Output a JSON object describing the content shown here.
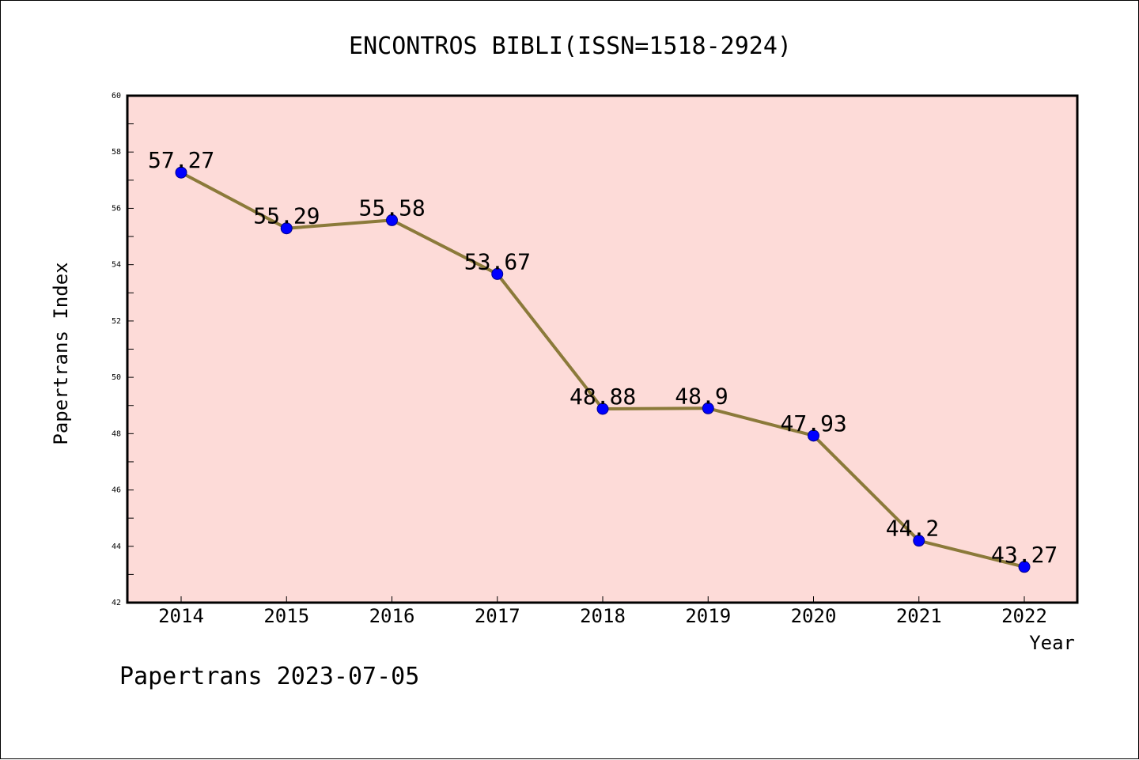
{
  "chart_data": {
    "type": "line",
    "title": "ENCONTROS BIBLI(ISSN=1518-2924)",
    "xlabel": "Year",
    "ylabel": "Papertrans Index",
    "categories": [
      "2014",
      "2015",
      "2016",
      "2017",
      "2018",
      "2019",
      "2020",
      "2021",
      "2022"
    ],
    "values": [
      57.27,
      55.29,
      55.58,
      53.67,
      48.88,
      48.9,
      47.93,
      44.2,
      43.27
    ],
    "data_labels": [
      "57.27",
      "55.29",
      "55.58",
      "53.67",
      "48.88",
      "48.9",
      "47.93",
      "44.2",
      "43.27"
    ],
    "ylim": [
      42,
      60
    ],
    "yticks": [
      "42",
      "44",
      "46",
      "48",
      "50",
      "52",
      "54",
      "56",
      "58",
      "60"
    ],
    "grid": false,
    "colors": {
      "plot_background": "#fddbd8",
      "line": "#8b7a3a",
      "marker": "#0000ff"
    }
  },
  "footer": {
    "text": "Papertrans 2023-07-05"
  }
}
